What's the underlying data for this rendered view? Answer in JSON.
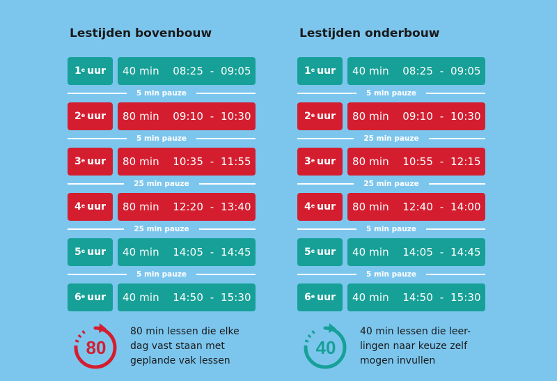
{
  "bovenbouw": {
    "title": "Lestijden bovenbouw",
    "rows": [
      {
        "num": "1",
        "sup": "e",
        "uur": "uur",
        "duur": "40 min",
        "start": "08:25",
        "end": "09:05",
        "color": "#17a097"
      },
      {
        "num": "2",
        "sup": "e",
        "uur": "uur",
        "duur": "80 min",
        "start": "09:10",
        "end": "10:30",
        "color": "#d41e30"
      },
      {
        "num": "3",
        "sup": "e",
        "uur": "uur",
        "duur": "80 min",
        "start": "10:35",
        "end": "11:55",
        "color": "#d41e30"
      },
      {
        "num": "4",
        "sup": "e",
        "uur": "uur",
        "duur": "80 min",
        "start": "12:20",
        "end": "13:40",
        "color": "#d41e30"
      },
      {
        "num": "5",
        "sup": "e",
        "uur": "uur",
        "duur": "40 min",
        "start": "14:05",
        "end": "14:45",
        "color": "#17a097"
      },
      {
        "num": "6",
        "sup": "e",
        "uur": "uur",
        "duur": "40 min",
        "start": "14:50",
        "end": "15:30",
        "color": "#17a097"
      }
    ],
    "pauzes": [
      "5 min pauze",
      "5 min pauze",
      "25 min pauze",
      "25 min pauze",
      "5 min pauze"
    ],
    "legend": {
      "icon_number": "80",
      "icon_color": "#d41e30",
      "line1": "80 min lessen die elke",
      "line2": "dag vast staan met",
      "line3": "geplande vak lessen"
    }
  },
  "onderbouw": {
    "title": "Lestijden onderbouw",
    "rows": [
      {
        "num": "1",
        "sup": "e",
        "uur": "uur",
        "duur": "40 min",
        "start": "08:25",
        "end": "09:05",
        "color": "#17a097"
      },
      {
        "num": "2",
        "sup": "e",
        "uur": "uur",
        "duur": "80 min",
        "start": "09:10",
        "end": "10:30",
        "color": "#d41e30"
      },
      {
        "num": "3",
        "sup": "e",
        "uur": "uur",
        "duur": "80 min",
        "start": "10:55",
        "end": "12:15",
        "color": "#d41e30"
      },
      {
        "num": "4",
        "sup": "e",
        "uur": "uur",
        "duur": "80 min",
        "start": "12:40",
        "end": "14:00",
        "color": "#d41e30"
      },
      {
        "num": "5",
        "sup": "e",
        "uur": "uur",
        "duur": "40 min",
        "start": "14:05",
        "end": "14:45",
        "color": "#17a097"
      },
      {
        "num": "6",
        "sup": "e",
        "uur": "uur",
        "duur": "40 min",
        "start": "14:50",
        "end": "15:30",
        "color": "#17a097"
      }
    ],
    "pauzes": [
      "5 min pauze",
      "25 min pauze",
      "25 min pauze",
      "5 min pauze",
      "5 min pauze"
    ],
    "legend": {
      "icon_number": "40",
      "icon_color": "#17a097",
      "line1": "40 min lessen die leer-",
      "line2": "lingen naar keuze zelf",
      "line3": "mogen invullen"
    }
  }
}
